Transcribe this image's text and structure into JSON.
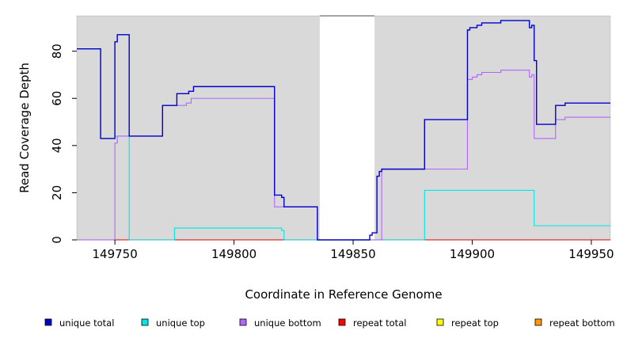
{
  "chart_data": {
    "type": "line",
    "title": "",
    "xlabel": "Coordinate in Reference Genome",
    "ylabel": "Read Coverage Depth",
    "xlim": [
      149734,
      149958
    ],
    "ylim": [
      0,
      95
    ],
    "x_ticks": [
      149750,
      149800,
      149850,
      149900,
      149950
    ],
    "y_ticks": [
      0,
      20,
      40,
      60,
      80
    ],
    "x_tick_labels": [
      "149750",
      "149800",
      "149850",
      "149900",
      "149950"
    ],
    "y_tick_labels": [
      "0",
      "20",
      "40",
      "60",
      "80"
    ],
    "plot_background": "#d9d9d9",
    "uncovered_region": [
      149836,
      149859
    ],
    "uncovered_color": "#ffffff",
    "grid": false,
    "legend_position": "bottom",
    "series": [
      {
        "name": "unique total",
        "color": "#0000cc",
        "points": [
          [
            149734,
            81
          ],
          [
            149744,
            81
          ],
          [
            149744,
            43
          ],
          [
            149750,
            43
          ],
          [
            149750,
            84
          ],
          [
            149751,
            84
          ],
          [
            149751,
            87
          ],
          [
            149756,
            87
          ],
          [
            149756,
            44
          ],
          [
            149770,
            44
          ],
          [
            149770,
            57
          ],
          [
            149776,
            57
          ],
          [
            149776,
            62
          ],
          [
            149781,
            62
          ],
          [
            149781,
            63
          ],
          [
            149783,
            63
          ],
          [
            149783,
            65
          ],
          [
            149817,
            65
          ],
          [
            149817,
            19
          ],
          [
            149820,
            19
          ],
          [
            149820,
            18
          ],
          [
            149821,
            18
          ],
          [
            149821,
            14
          ],
          [
            149835,
            14
          ],
          [
            149835,
            0
          ],
          [
            149857,
            0
          ],
          [
            149857,
            2
          ],
          [
            149858,
            2
          ],
          [
            149858,
            3
          ],
          [
            149860,
            3
          ],
          [
            149860,
            27
          ],
          [
            149861,
            27
          ],
          [
            149861,
            29
          ],
          [
            149862,
            29
          ],
          [
            149862,
            30
          ],
          [
            149880,
            30
          ],
          [
            149880,
            51
          ],
          [
            149898,
            51
          ],
          [
            149898,
            89
          ],
          [
            149899,
            89
          ],
          [
            149899,
            90
          ],
          [
            149902,
            90
          ],
          [
            149902,
            91
          ],
          [
            149904,
            91
          ],
          [
            149904,
            92
          ],
          [
            149912,
            92
          ],
          [
            149912,
            93
          ],
          [
            149924,
            93
          ],
          [
            149924,
            90
          ],
          [
            149925,
            90
          ],
          [
            149925,
            91
          ],
          [
            149926,
            91
          ],
          [
            149926,
            76
          ],
          [
            149927,
            76
          ],
          [
            149927,
            49
          ],
          [
            149935,
            49
          ],
          [
            149935,
            57
          ],
          [
            149939,
            57
          ],
          [
            149939,
            58
          ],
          [
            149958,
            58
          ]
        ]
      },
      {
        "name": "unique top",
        "color": "#00e5e5",
        "points": [
          [
            149734,
            81
          ],
          [
            149744,
            81
          ],
          [
            149744,
            43
          ],
          [
            149750,
            43
          ],
          [
            149750,
            44
          ],
          [
            149756,
            44
          ],
          [
            149756,
            0
          ],
          [
            149775,
            0
          ],
          [
            149775,
            5
          ],
          [
            149820,
            5
          ],
          [
            149820,
            4
          ],
          [
            149821,
            4
          ],
          [
            149821,
            0
          ],
          [
            149880,
            0
          ],
          [
            149880,
            21
          ],
          [
            149926,
            21
          ],
          [
            149926,
            6
          ],
          [
            149958,
            6
          ]
        ]
      },
      {
        "name": "unique bottom",
        "color": "#b266ff",
        "points": [
          [
            149734,
            0
          ],
          [
            149750,
            0
          ],
          [
            149750,
            41
          ],
          [
            149751,
            41
          ],
          [
            149751,
            44
          ],
          [
            149770,
            44
          ],
          [
            149770,
            57
          ],
          [
            149780,
            57
          ],
          [
            149780,
            58
          ],
          [
            149782,
            58
          ],
          [
            149782,
            60
          ],
          [
            149817,
            60
          ],
          [
            149817,
            14
          ],
          [
            149835,
            14
          ],
          [
            149835,
            0
          ],
          [
            149862,
            0
          ],
          [
            149862,
            30
          ],
          [
            149898,
            30
          ],
          [
            149898,
            68
          ],
          [
            149900,
            68
          ],
          [
            149900,
            69
          ],
          [
            149902,
            69
          ],
          [
            149902,
            70
          ],
          [
            149904,
            70
          ],
          [
            149904,
            71
          ],
          [
            149912,
            71
          ],
          [
            149912,
            72
          ],
          [
            149924,
            72
          ],
          [
            149924,
            69
          ],
          [
            149925,
            69
          ],
          [
            149925,
            70
          ],
          [
            149926,
            70
          ],
          [
            149926,
            43
          ],
          [
            149935,
            43
          ],
          [
            149935,
            51
          ],
          [
            149939,
            51
          ],
          [
            149939,
            52
          ],
          [
            149958,
            52
          ]
        ]
      },
      {
        "name": "repeat total",
        "color": "#ff0000",
        "points": [
          [
            149734,
            0
          ],
          [
            149958,
            0
          ]
        ]
      },
      {
        "name": "repeat top",
        "color": "#ffff00",
        "points": [
          [
            149734,
            0
          ],
          [
            149958,
            0
          ]
        ]
      },
      {
        "name": "repeat bottom",
        "color": "#ff9900",
        "points": [
          [
            149734,
            0
          ],
          [
            149958,
            0
          ]
        ]
      }
    ]
  }
}
